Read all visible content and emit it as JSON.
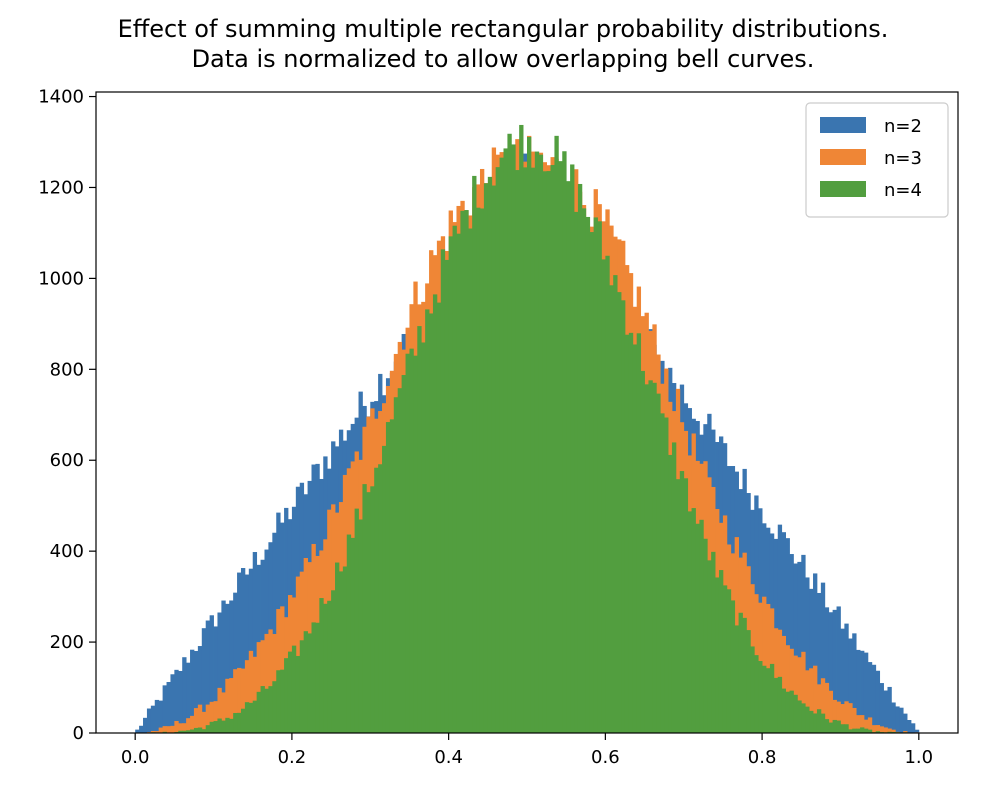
{
  "chart_data": {
    "type": "histogram",
    "title": [
      "Effect of summing multiple rectangular probability distributions.",
      "Data is normalized to allow overlapping bell curves."
    ],
    "xlabel": "",
    "ylabel": "",
    "xlim": [
      -0.05,
      1.05
    ],
    "ylim": [
      0,
      1410
    ],
    "xticks": [
      "0.0",
      "0.2",
      "0.4",
      "0.6",
      "0.8",
      "1.0"
    ],
    "yticks": [
      "0",
      "200",
      "400",
      "600",
      "800",
      "1000",
      "1200",
      "1400"
    ],
    "xtick_values": [
      0.0,
      0.2,
      0.4,
      0.6,
      0.8,
      1.0
    ],
    "ytick_values": [
      0,
      200,
      400,
      600,
      800,
      1000,
      1200,
      1400
    ],
    "bins": 200,
    "grid": false,
    "legend_position": "top-right",
    "series": [
      {
        "name": "n=2",
        "color": "#3a75b0",
        "distribution": "sum of 2 uniforms / 2",
        "approx_peak": 1280
      },
      {
        "name": "n=3",
        "color": "#ef8636",
        "distribution": "sum of 3 uniforms / 3",
        "approx_peak": 1300
      },
      {
        "name": "n=4",
        "color": "#529e3f",
        "distribution": "sum of 4 uniforms / 4",
        "approx_peak": 1340
      }
    ]
  }
}
